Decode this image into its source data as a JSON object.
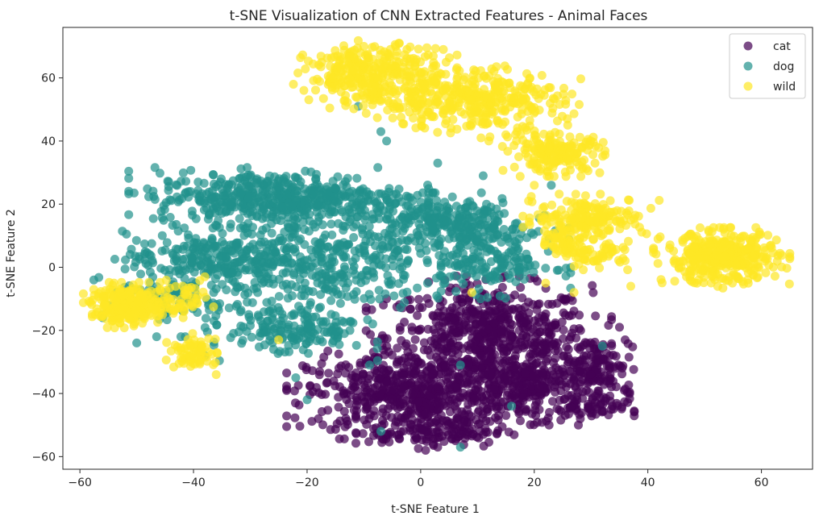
{
  "chart_data": {
    "type": "scatter",
    "title": "t-SNE Visualization of CNN Extracted Features - Animal Faces",
    "xlabel": "t-SNE Feature 1",
    "ylabel": "t-SNE Feature 2",
    "xlim": [
      -63,
      69
    ],
    "ylim": [
      -64,
      76
    ],
    "xticks": [
      -60,
      -40,
      -20,
      0,
      20,
      40,
      60
    ],
    "yticks": [
      -60,
      -40,
      -20,
      0,
      20,
      40,
      60
    ],
    "legend_position": "top-right",
    "grid": false,
    "marker_alpha": 0.7,
    "series": [
      {
        "name": "cat",
        "color": "#440154",
        "clusters": [
          {
            "cx": 12,
            "cy": -22,
            "sx": 9,
            "sy": 8,
            "n": 620
          },
          {
            "cx": -2,
            "cy": -40,
            "sx": 9,
            "sy": 6,
            "n": 520
          },
          {
            "cx": 20,
            "cy": -38,
            "sx": 7,
            "sy": 5,
            "n": 260
          },
          {
            "cx": 31,
            "cy": -30,
            "sx": 3,
            "sy": 4,
            "n": 90
          },
          {
            "cx": 28,
            "cy": -45,
            "sx": 4,
            "sy": 2,
            "n": 60
          },
          {
            "cx": 3,
            "cy": -52,
            "sx": 6,
            "sy": 2.5,
            "n": 120
          }
        ],
        "outliers": [
          [
            -6,
            -10
          ],
          [
            3,
            -57
          ],
          [
            36,
            -23
          ],
          [
            35,
            -19
          ],
          [
            -18,
            -48
          ]
        ]
      },
      {
        "name": "dog",
        "color": "#21918c",
        "clusters": [
          {
            "cx": -25,
            "cy": 22,
            "sx": 11,
            "sy": 4,
            "n": 520
          },
          {
            "cx": -38,
            "cy": 3,
            "sx": 7,
            "sy": 4,
            "n": 200
          },
          {
            "cx": -18,
            "cy": 2,
            "sx": 9,
            "sy": 8,
            "n": 380
          },
          {
            "cx": 5,
            "cy": 14,
            "sx": 7,
            "sy": 4,
            "n": 260
          },
          {
            "cx": 12,
            "cy": 2,
            "sx": 6,
            "sy": 5,
            "n": 180
          },
          {
            "cx": -22,
            "cy": -20,
            "sx": 6,
            "sy": 4,
            "n": 160
          },
          {
            "cx": -44,
            "cy": -10,
            "sx": 6,
            "sy": 5,
            "n": 110
          }
        ],
        "outliers": [
          [
            -7,
            43
          ],
          [
            -6,
            40
          ],
          [
            -11,
            51
          ],
          [
            3,
            33
          ],
          [
            23,
            26
          ],
          [
            11,
            29
          ],
          [
            -50,
            -24
          ],
          [
            -56,
            -16
          ],
          [
            -22,
            -35
          ],
          [
            -20,
            -42
          ],
          [
            7,
            -31
          ],
          [
            16,
            -44
          ],
          [
            -9,
            -31
          ],
          [
            -7,
            -52
          ],
          [
            32,
            -25
          ],
          [
            7,
            -57
          ],
          [
            -38,
            -28
          ]
        ]
      },
      {
        "name": "wild",
        "color": "#fde725",
        "clusters": [
          {
            "cx": -8,
            "cy": 61,
            "sx": 6,
            "sy": 4.5,
            "n": 320
          },
          {
            "cx": 9,
            "cy": 53,
            "sx": 8,
            "sy": 5,
            "n": 360
          },
          {
            "cx": 24,
            "cy": 36,
            "sx": 4,
            "sy": 3,
            "n": 180
          },
          {
            "cx": 30,
            "cy": 16,
            "sx": 5,
            "sy": 3,
            "n": 170
          },
          {
            "cx": 25,
            "cy": 8,
            "sx": 2,
            "sy": 2.5,
            "n": 50
          },
          {
            "cx": 31,
            "cy": 4,
            "sx": 3,
            "sy": 2,
            "n": 60
          },
          {
            "cx": 53,
            "cy": 3,
            "sx": 5,
            "sy": 4,
            "n": 380
          },
          {
            "cx": -51,
            "cy": -12,
            "sx": 3.5,
            "sy": 3,
            "n": 260
          },
          {
            "cx": -40,
            "cy": -27,
            "sx": 2,
            "sy": 2.5,
            "n": 70
          },
          {
            "cx": -42,
            "cy": -10,
            "sx": 2.5,
            "sy": 2.5,
            "n": 40
          }
        ],
        "outliers": [
          [
            13,
            51
          ],
          [
            15,
            42
          ],
          [
            17,
            43
          ],
          [
            12,
            40
          ],
          [
            20,
            26
          ],
          [
            19,
            21
          ],
          [
            22,
            -5
          ],
          [
            27,
            -8
          ],
          [
            37,
            -6
          ],
          [
            -25,
            -23
          ],
          [
            -36,
            -34
          ],
          [
            -54,
            -5
          ],
          [
            9,
            -8
          ],
          [
            -38,
            -3
          ],
          [
            4,
            69
          ],
          [
            -10,
            70
          ]
        ]
      }
    ]
  }
}
